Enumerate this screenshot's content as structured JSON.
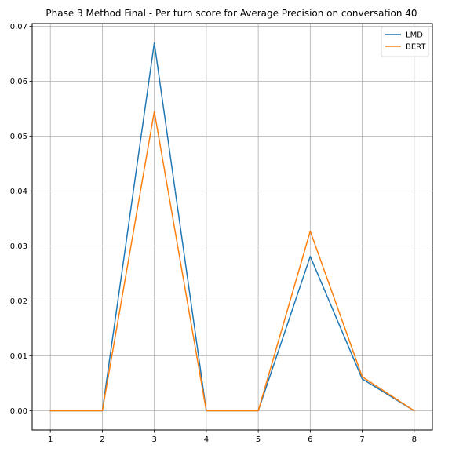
{
  "chart_data": {
    "type": "line",
    "title": "Phase 3 Method Final - Per turn score for Average Precision on conversation 40",
    "xlabel": "",
    "ylabel": "",
    "x": [
      1,
      2,
      3,
      4,
      5,
      6,
      7,
      8
    ],
    "xlim": [
      0.65,
      8.35
    ],
    "ylim": [
      -0.0035,
      0.0705
    ],
    "xticks": [
      1,
      2,
      3,
      4,
      5,
      6,
      7,
      8
    ],
    "yticks": [
      0.0,
      0.01,
      0.02,
      0.03,
      0.04,
      0.05,
      0.06,
      0.07
    ],
    "ytick_labels": [
      "0.00",
      "0.01",
      "0.02",
      "0.03",
      "0.04",
      "0.05",
      "0.06",
      "0.07"
    ],
    "grid": true,
    "legend_position": "top-right",
    "series": [
      {
        "name": "LMD",
        "color": "#1f77b4",
        "values": [
          0.0,
          0.0,
          0.067,
          0.0,
          0.0,
          0.0281,
          0.0058,
          0.0
        ]
      },
      {
        "name": "BERT",
        "color": "#ff7f0e",
        "values": [
          0.0,
          0.0,
          0.0545,
          0.0,
          0.0,
          0.0327,
          0.0062,
          0.0
        ]
      }
    ]
  }
}
